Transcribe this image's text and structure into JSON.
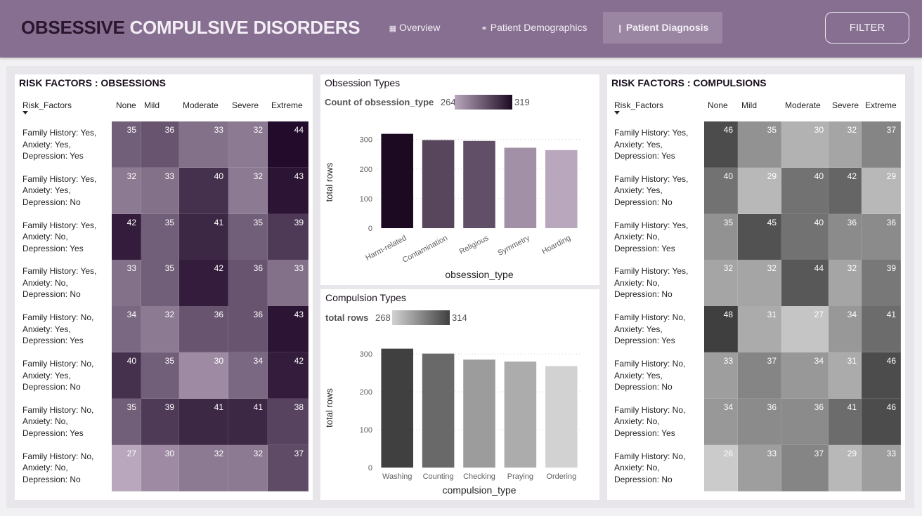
{
  "header": {
    "title_w1": "OBSESSIVE",
    "title_w2": "COMPULSIVE",
    "title_w3": "DISORDERS",
    "nav": [
      {
        "label": "Overview",
        "icon": "grid-icon"
      },
      {
        "label": "Patient Demographics",
        "icon": "gender-icon"
      },
      {
        "label": "Patient Diagnosis",
        "icon": "person-icon"
      }
    ],
    "filter_label": "FILTER",
    "colors": {
      "header_bg": "#866f90",
      "active_tab": "#9a86a3"
    }
  },
  "obsessions_panel": {
    "title": "RISK FACTORS : OBSESSIONS",
    "row_header": "Risk_Factors",
    "columns": [
      "None",
      "Mild",
      "Moderate",
      "Severe",
      "Extreme"
    ],
    "rows": [
      {
        "label": "Family History: Yes, Anxiety: Yes, Depression: Yes",
        "values": [
          35,
          36,
          33,
          32,
          44
        ]
      },
      {
        "label": "Family History: Yes, Anxiety: Yes, Depression: No",
        "values": [
          32,
          33,
          40,
          32,
          43
        ]
      },
      {
        "label": "Family History: Yes, Anxiety: No, Depression: Yes",
        "values": [
          42,
          35,
          41,
          35,
          39
        ]
      },
      {
        "label": "Family History: Yes, Anxiety: No, Depression: No",
        "values": [
          33,
          35,
          42,
          36,
          33
        ]
      },
      {
        "label": "Family History: No, Anxiety: Yes, Depression: Yes",
        "values": [
          34,
          32,
          36,
          36,
          43
        ]
      },
      {
        "label": "Family History: No, Anxiety: Yes, Depression: No",
        "values": [
          40,
          35,
          30,
          34,
          42
        ]
      },
      {
        "label": "Family History: No, Anxiety: No, Depression: Yes",
        "values": [
          35,
          39,
          41,
          41,
          38
        ]
      },
      {
        "label": "Family History: No, Anxiety: No, Depression: No",
        "values": [
          27,
          30,
          32,
          32,
          37
        ]
      }
    ],
    "color_low": "#b8a7bd",
    "color_high": "#220b2b"
  },
  "compulsions_panel": {
    "title": "RISK FACTORS : COMPULSIONS",
    "row_header": "Risk_Factors",
    "columns": [
      "None",
      "Mild",
      "Moderate",
      "Severe",
      "Extreme"
    ],
    "rows": [
      {
        "label": "Family History: Yes, Anxiety: Yes, Depression: Yes",
        "values": [
          46,
          35,
          30,
          32,
          37
        ]
      },
      {
        "label": "Family History: Yes, Anxiety: Yes, Depression: No",
        "values": [
          40,
          29,
          40,
          42,
          29
        ]
      },
      {
        "label": "Family History: Yes, Anxiety: No, Depression: Yes",
        "values": [
          35,
          45,
          40,
          36,
          36
        ]
      },
      {
        "label": "Family History: Yes, Anxiety: No, Depression: No",
        "values": [
          32,
          32,
          44,
          32,
          39
        ]
      },
      {
        "label": "Family History: No, Anxiety: Yes, Depression: Yes",
        "values": [
          48,
          31,
          27,
          34,
          41
        ]
      },
      {
        "label": "Family History: No, Anxiety: Yes, Depression: No",
        "values": [
          33,
          37,
          34,
          31,
          46
        ]
      },
      {
        "label": "Family History: No, Anxiety: No, Depression: Yes",
        "values": [
          34,
          36,
          36,
          41,
          46
        ]
      },
      {
        "label": "Family History: No, Anxiety: No, Depression: No",
        "values": [
          26,
          33,
          37,
          29,
          33
        ]
      }
    ],
    "color_low": "#cbcbcb",
    "color_high": "#3f3f3f"
  },
  "chart_data": [
    {
      "type": "bar",
      "title": "Obsession Types",
      "legend_label": "Count of obsession_type",
      "legend_min": 264,
      "legend_max": 319,
      "categories": [
        "Harm-related",
        "Contamination",
        "Religious",
        "Symmetry",
        "Hoarding"
      ],
      "values": [
        319,
        298,
        295,
        272,
        264
      ],
      "xlabel": "obsession_type",
      "ylabel": "total rows",
      "ylim": [
        0,
        330
      ],
      "yticks": [
        0,
        100,
        200,
        300
      ],
      "grid": true,
      "color_low": "#b8a7bd",
      "color_high": "#1c0a22"
    },
    {
      "type": "bar",
      "title": "Compulsion Types",
      "legend_label": "total rows",
      "legend_min": 268,
      "legend_max": 314,
      "categories": [
        "Washing",
        "Counting",
        "Checking",
        "Praying",
        "Ordering"
      ],
      "values": [
        314,
        301,
        285,
        280,
        268
      ],
      "xlabel": "compulsion_type",
      "ylabel": "total rows",
      "ylim": [
        0,
        330
      ],
      "yticks": [
        0,
        100,
        200,
        300
      ],
      "grid": true,
      "color_low": "#d2d2d2",
      "color_high": "#404040"
    }
  ]
}
